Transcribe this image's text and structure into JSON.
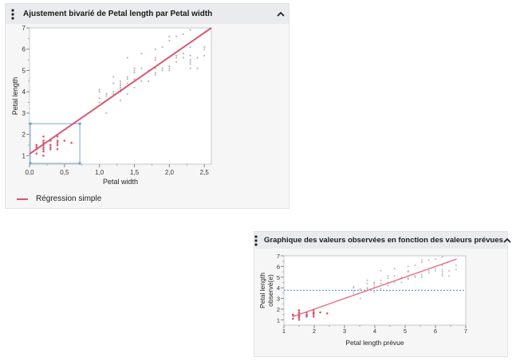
{
  "panel1": {
    "title": "Ajustement bivarié de Petal length par Petal width",
    "menu_icon": "kebab-menu-icon",
    "collapse_icon": "chevron-up-icon",
    "legend": {
      "label": "Régression simple",
      "color": "#d9566f"
    }
  },
  "panel2": {
    "title": "Graphique des valeurs observées en fonction des valeurs prévues",
    "menu_icon": "kebab-menu-icon",
    "collapse_icon": "chevron-up-icon"
  },
  "colors": {
    "selected": "#d9566f",
    "unselected": "#b8b8b8",
    "selection_box": "#8fb8d8",
    "mean_line": "#6f9cf0"
  },
  "chart_data": [
    {
      "type": "scatter",
      "title": "Ajustement bivarié de Petal length par Petal width",
      "xlabel": "Petal width",
      "ylabel": "Petal length",
      "xlim": [
        0,
        2.6
      ],
      "ylim": [
        0.6,
        7
      ],
      "xticks": [
        "0,0",
        "0,5",
        "1,0",
        "1,5",
        "2,0",
        "2,5"
      ],
      "yticks": [
        "1",
        "2",
        "3",
        "4",
        "5",
        "6",
        "7"
      ],
      "fit_line": {
        "name": "Régression simple",
        "x": [
          0,
          2.6
        ],
        "y": [
          1.08,
          7.0
        ]
      },
      "selection_box": {
        "x": [
          0.0,
          0.72
        ],
        "y": [
          0.6,
          2.5
        ]
      },
      "series": [
        {
          "name": "selected",
          "points": [
            [
              0.1,
              1.1
            ],
            [
              0.1,
              1.4
            ],
            [
              0.1,
              1.5
            ],
            [
              0.1,
              1.3
            ],
            [
              0.2,
              1.0
            ],
            [
              0.2,
              1.2
            ],
            [
              0.2,
              1.3
            ],
            [
              0.2,
              1.4
            ],
            [
              0.2,
              1.5
            ],
            [
              0.2,
              1.6
            ],
            [
              0.2,
              1.7
            ],
            [
              0.2,
              1.9
            ],
            [
              0.3,
              1.3
            ],
            [
              0.3,
              1.4
            ],
            [
              0.3,
              1.5
            ],
            [
              0.3,
              1.7
            ],
            [
              0.4,
              1.3
            ],
            [
              0.4,
              1.5
            ],
            [
              0.4,
              1.6
            ],
            [
              0.4,
              1.7
            ],
            [
              0.4,
              1.9
            ],
            [
              0.5,
              1.7
            ],
            [
              0.6,
              1.6
            ]
          ]
        },
        {
          "name": "unselected",
          "points": [
            [
              1.0,
              3.5
            ],
            [
              1.0,
              3.7
            ],
            [
              1.0,
              4.0
            ],
            [
              1.0,
              4.1
            ],
            [
              1.1,
              3.0
            ],
            [
              1.1,
              3.8
            ],
            [
              1.1,
              3.9
            ],
            [
              1.2,
              3.9
            ],
            [
              1.2,
              4.0
            ],
            [
              1.2,
              4.4
            ],
            [
              1.2,
              4.7
            ],
            [
              1.3,
              3.6
            ],
            [
              1.3,
              4.0
            ],
            [
              1.3,
              4.1
            ],
            [
              1.3,
              4.2
            ],
            [
              1.3,
              4.3
            ],
            [
              1.3,
              4.4
            ],
            [
              1.3,
              4.5
            ],
            [
              1.4,
              3.9
            ],
            [
              1.4,
              4.4
            ],
            [
              1.4,
              4.6
            ],
            [
              1.4,
              4.7
            ],
            [
              1.4,
              5.6
            ],
            [
              1.5,
              4.2
            ],
            [
              1.5,
              4.5
            ],
            [
              1.5,
              4.6
            ],
            [
              1.5,
              4.9
            ],
            [
              1.5,
              5.0
            ],
            [
              1.5,
              5.1
            ],
            [
              1.6,
              4.5
            ],
            [
              1.6,
              5.1
            ],
            [
              1.6,
              5.8
            ],
            [
              1.7,
              4.5
            ],
            [
              1.7,
              5.0
            ],
            [
              1.8,
              4.8
            ],
            [
              1.8,
              4.9
            ],
            [
              1.8,
              5.1
            ],
            [
              1.8,
              5.5
            ],
            [
              1.8,
              5.6
            ],
            [
              1.8,
              6.0
            ],
            [
              1.9,
              5.0
            ],
            [
              1.9,
              5.1
            ],
            [
              1.9,
              6.1
            ],
            [
              2.0,
              5.0
            ],
            [
              2.0,
              5.1
            ],
            [
              2.0,
              5.2
            ],
            [
              2.0,
              6.4
            ],
            [
              2.0,
              6.6
            ],
            [
              2.1,
              5.4
            ],
            [
              2.1,
              5.6
            ],
            [
              2.1,
              5.7
            ],
            [
              2.1,
              6.6
            ],
            [
              2.2,
              5.6
            ],
            [
              2.2,
              5.8
            ],
            [
              2.2,
              6.7
            ],
            [
              2.3,
              5.1
            ],
            [
              2.3,
              5.3
            ],
            [
              2.3,
              5.4
            ],
            [
              2.3,
              5.5
            ],
            [
              2.3,
              5.7
            ],
            [
              2.3,
              6.1
            ],
            [
              2.3,
              6.9
            ],
            [
              2.4,
              5.1
            ],
            [
              2.4,
              5.6
            ],
            [
              2.5,
              5.7
            ],
            [
              2.5,
              6.0
            ],
            [
              2.5,
              6.1
            ]
          ]
        }
      ]
    },
    {
      "type": "scatter",
      "title": "Graphique des valeurs observées en fonction des valeurs prévues",
      "xlabel": "Petal length prévue",
      "ylabel": "Petal length observé(e)",
      "xlim": [
        1,
        7
      ],
      "ylim": [
        0.5,
        7
      ],
      "xticks": [
        "1",
        "2",
        "3",
        "4",
        "5",
        "6",
        "7"
      ],
      "yticks": [
        "1",
        "2",
        "3",
        "4",
        "5",
        "6",
        "7"
      ],
      "fit_line": {
        "x": [
          1.3,
          6.7
        ],
        "y": [
          1.3,
          6.7
        ]
      },
      "mean_line": {
        "y": 3.76
      },
      "series": [
        {
          "name": "selected",
          "points": [
            [
              1.3,
              1.1
            ],
            [
              1.3,
              1.4
            ],
            [
              1.3,
              1.5
            ],
            [
              1.5,
              1.0
            ],
            [
              1.5,
              1.2
            ],
            [
              1.5,
              1.3
            ],
            [
              1.5,
              1.4
            ],
            [
              1.5,
              1.5
            ],
            [
              1.5,
              1.6
            ],
            [
              1.5,
              1.7
            ],
            [
              1.5,
              1.9
            ],
            [
              1.75,
              1.3
            ],
            [
              1.75,
              1.4
            ],
            [
              1.75,
              1.5
            ],
            [
              1.75,
              1.7
            ],
            [
              1.98,
              1.3
            ],
            [
              1.98,
              1.5
            ],
            [
              1.98,
              1.6
            ],
            [
              1.98,
              1.7
            ],
            [
              1.98,
              1.9
            ],
            [
              2.2,
              1.7
            ],
            [
              2.43,
              1.6
            ]
          ]
        },
        {
          "name": "unselected",
          "points": [
            [
              3.3,
              3.5
            ],
            [
              3.3,
              3.7
            ],
            [
              3.3,
              4.0
            ],
            [
              3.3,
              4.1
            ],
            [
              3.52,
              3.0
            ],
            [
              3.52,
              3.8
            ],
            [
              3.52,
              3.9
            ],
            [
              3.75,
              3.9
            ],
            [
              3.75,
              4.0
            ],
            [
              3.75,
              4.4
            ],
            [
              3.75,
              4.7
            ],
            [
              3.98,
              3.6
            ],
            [
              3.98,
              4.0
            ],
            [
              3.98,
              4.2
            ],
            [
              3.98,
              4.4
            ],
            [
              3.98,
              4.5
            ],
            [
              4.2,
              3.9
            ],
            [
              4.2,
              4.4
            ],
            [
              4.2,
              4.7
            ],
            [
              4.2,
              5.6
            ],
            [
              4.43,
              4.2
            ],
            [
              4.43,
              4.5
            ],
            [
              4.43,
              4.9
            ],
            [
              4.43,
              5.1
            ],
            [
              4.65,
              4.5
            ],
            [
              4.65,
              5.1
            ],
            [
              4.65,
              5.8
            ],
            [
              4.88,
              4.5
            ],
            [
              4.88,
              5.0
            ],
            [
              5.1,
              4.8
            ],
            [
              5.1,
              4.9
            ],
            [
              5.1,
              5.1
            ],
            [
              5.1,
              5.5
            ],
            [
              5.1,
              5.6
            ],
            [
              5.1,
              6.0
            ],
            [
              5.33,
              5.0
            ],
            [
              5.33,
              5.1
            ],
            [
              5.33,
              6.1
            ],
            [
              5.55,
              5.0
            ],
            [
              5.55,
              5.2
            ],
            [
              5.55,
              6.4
            ],
            [
              5.55,
              6.6
            ],
            [
              5.78,
              5.4
            ],
            [
              5.78,
              5.6
            ],
            [
              5.78,
              6.6
            ],
            [
              6.0,
              5.6
            ],
            [
              6.0,
              5.8
            ],
            [
              6.0,
              6.7
            ],
            [
              6.23,
              5.1
            ],
            [
              6.23,
              5.3
            ],
            [
              6.23,
              5.5
            ],
            [
              6.23,
              5.7
            ],
            [
              6.23,
              6.1
            ],
            [
              6.23,
              6.9
            ],
            [
              6.45,
              5.1
            ],
            [
              6.45,
              5.6
            ],
            [
              6.68,
              5.7
            ],
            [
              6.68,
              6.1
            ]
          ]
        }
      ]
    }
  ]
}
